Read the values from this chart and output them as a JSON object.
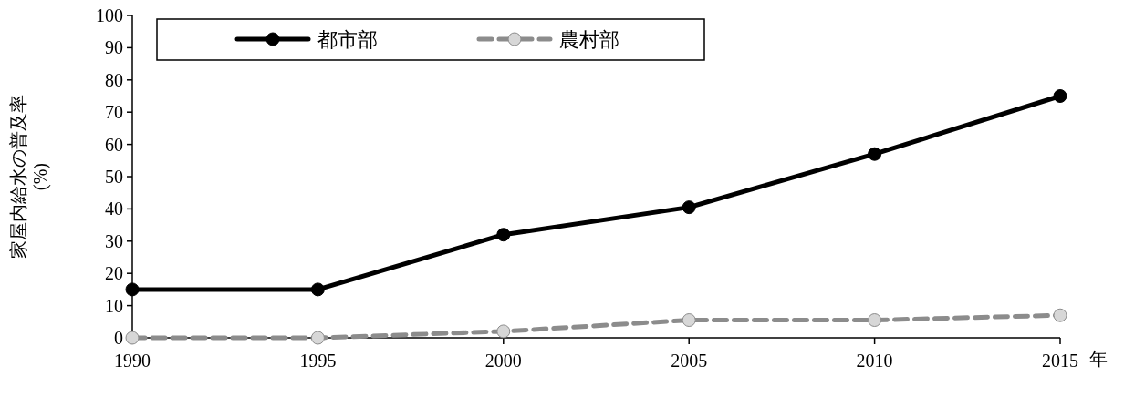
{
  "chart_data": {
    "type": "line",
    "xlabel": "年",
    "ylabel": "家屋内給水の普及率\n(%)",
    "x": [
      1990,
      1995,
      2000,
      2005,
      2010,
      2015
    ],
    "xlim": [
      1990,
      2015
    ],
    "xticks": [
      1990,
      1995,
      2000,
      2005,
      2010,
      2015
    ],
    "ylim": [
      0,
      100
    ],
    "yticks": [
      0,
      10,
      20,
      30,
      40,
      50,
      60,
      70,
      80,
      90,
      100
    ],
    "grid": false,
    "legend": "top",
    "marker": "circle",
    "series": [
      {
        "name": "都市部",
        "color": "#000000",
        "line_style": "solid",
        "values": [
          15,
          15,
          32,
          40.5,
          57,
          75
        ]
      },
      {
        "name": "農村部",
        "color": "#8c8c8c",
        "line_style": "dashed",
        "values": [
          0,
          0,
          2,
          5.5,
          5.5,
          7
        ]
      }
    ]
  }
}
